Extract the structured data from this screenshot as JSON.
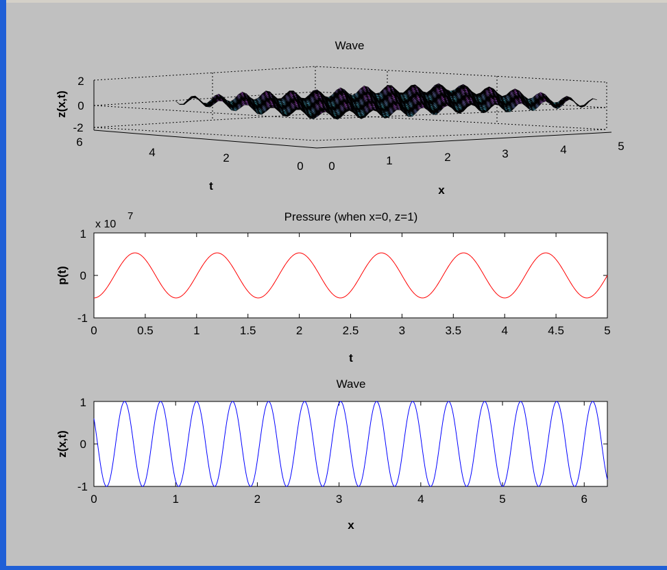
{
  "colors": {
    "figure_bg": "#c0c0c0",
    "axes_bg": "#ffffff",
    "frame": "#1f5fd6",
    "pressure_line": "#ff0000",
    "wave_line": "#0000ff",
    "surface_cyan": "#40e0e0",
    "surface_magenta": "#d040e0"
  },
  "chart_data": [
    {
      "type": "surface",
      "title": "Wave",
      "xlabel": "x",
      "ylabel": "t",
      "zlabel": "z(x,t)",
      "xlim": [
        0,
        5
      ],
      "ylim": [
        0,
        6
      ],
      "zlim": [
        -2,
        2
      ],
      "x_ticks": [
        "0",
        "1",
        "2",
        "3",
        "4",
        "5"
      ],
      "y_ticks": [
        "0",
        "2",
        "4",
        "6"
      ],
      "z_ticks": [
        "2",
        "0",
        "-2"
      ],
      "grid": true,
      "colormap": "cool",
      "amplitude": 1
    },
    {
      "type": "line",
      "title": "Pressure (when x=0, z=1)",
      "xlabel": "t",
      "ylabel": "p(t)",
      "exponent_label": "x 10",
      "exponent_power": "7",
      "xlim": [
        0,
        5
      ],
      "ylim": [
        -1,
        1
      ],
      "x_ticks": [
        "0",
        "0.5",
        "1",
        "1.5",
        "2",
        "2.5",
        "3",
        "3.5",
        "4",
        "4.5",
        "5"
      ],
      "y_ticks": [
        "1",
        "0",
        "-1"
      ],
      "series": [
        {
          "color": "#ff0000",
          "function": "-A*cos(2*pi*t/T)",
          "amplitude": 0.53,
          "period": 0.8,
          "t_range": [
            0,
            5
          ]
        }
      ]
    },
    {
      "type": "line",
      "title": "Wave",
      "xlabel": "x",
      "ylabel": "z(x,t)",
      "xlim": [
        0,
        6.2832
      ],
      "ylim": [
        -1,
        1
      ],
      "x_ticks": [
        "0",
        "1",
        "2",
        "3",
        "4",
        "5",
        "6"
      ],
      "y_ticks": [
        "1",
        "0",
        "-1"
      ],
      "series": [
        {
          "color": "#0000ff",
          "function": "sin(k*x + phase)",
          "k": 14.26,
          "phase": 2.5,
          "x_range": [
            0,
            6.2832
          ]
        }
      ]
    }
  ]
}
